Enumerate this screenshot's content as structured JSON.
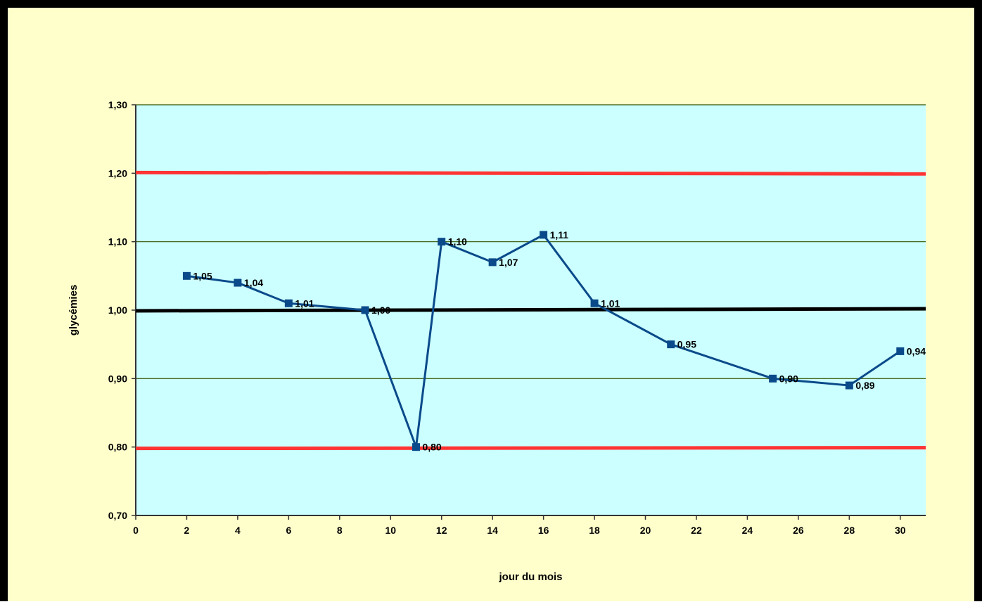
{
  "chart_data": {
    "type": "line",
    "title": "",
    "xlabel": "jour du mois",
    "ylabel": "glycémies",
    "xlim": [
      0,
      31
    ],
    "ylim": [
      0.7,
      1.3
    ],
    "x_ticks": [
      "0",
      "2",
      "4",
      "6",
      "8",
      "10",
      "12",
      "14",
      "16",
      "18",
      "20",
      "22",
      "24",
      "26",
      "28",
      "30"
    ],
    "y_ticks": [
      "0,70",
      "0,80",
      "0,90",
      "1,00",
      "1,10",
      "1,20",
      "1,30"
    ],
    "grid": "horizontal",
    "legend": "none",
    "series": [
      {
        "x": [
          2,
          4,
          6,
          9,
          11,
          12,
          14,
          16,
          18,
          21,
          25,
          28,
          30
        ],
        "y": [
          1.05,
          1.04,
          1.01,
          1.0,
          0.8,
          1.1,
          1.07,
          1.11,
          1.01,
          0.95,
          0.9,
          0.89,
          0.94
        ],
        "labels": [
          "1,05",
          "1,04",
          "1,01",
          "1,00",
          "0,80",
          "1,10",
          "1,07",
          "1,11",
          "1,01",
          "0,95",
          "0,90",
          "0,89",
          "0,94"
        ],
        "color": "#0a4a8a",
        "marker": "square"
      }
    ],
    "reference_lines": [
      {
        "y_start": 1.201,
        "y_end": 1.199,
        "color": "#ff3333"
      },
      {
        "y_start": 0.999,
        "y_end": 1.002,
        "color": "#000000"
      },
      {
        "y_start": 0.798,
        "y_end": 0.799,
        "color": "#ff3333"
      }
    ],
    "colors": {
      "frame_background": "#ffffcc",
      "plot_background": "#ccffff",
      "gridline": "#335500",
      "axis": "#333333"
    }
  }
}
